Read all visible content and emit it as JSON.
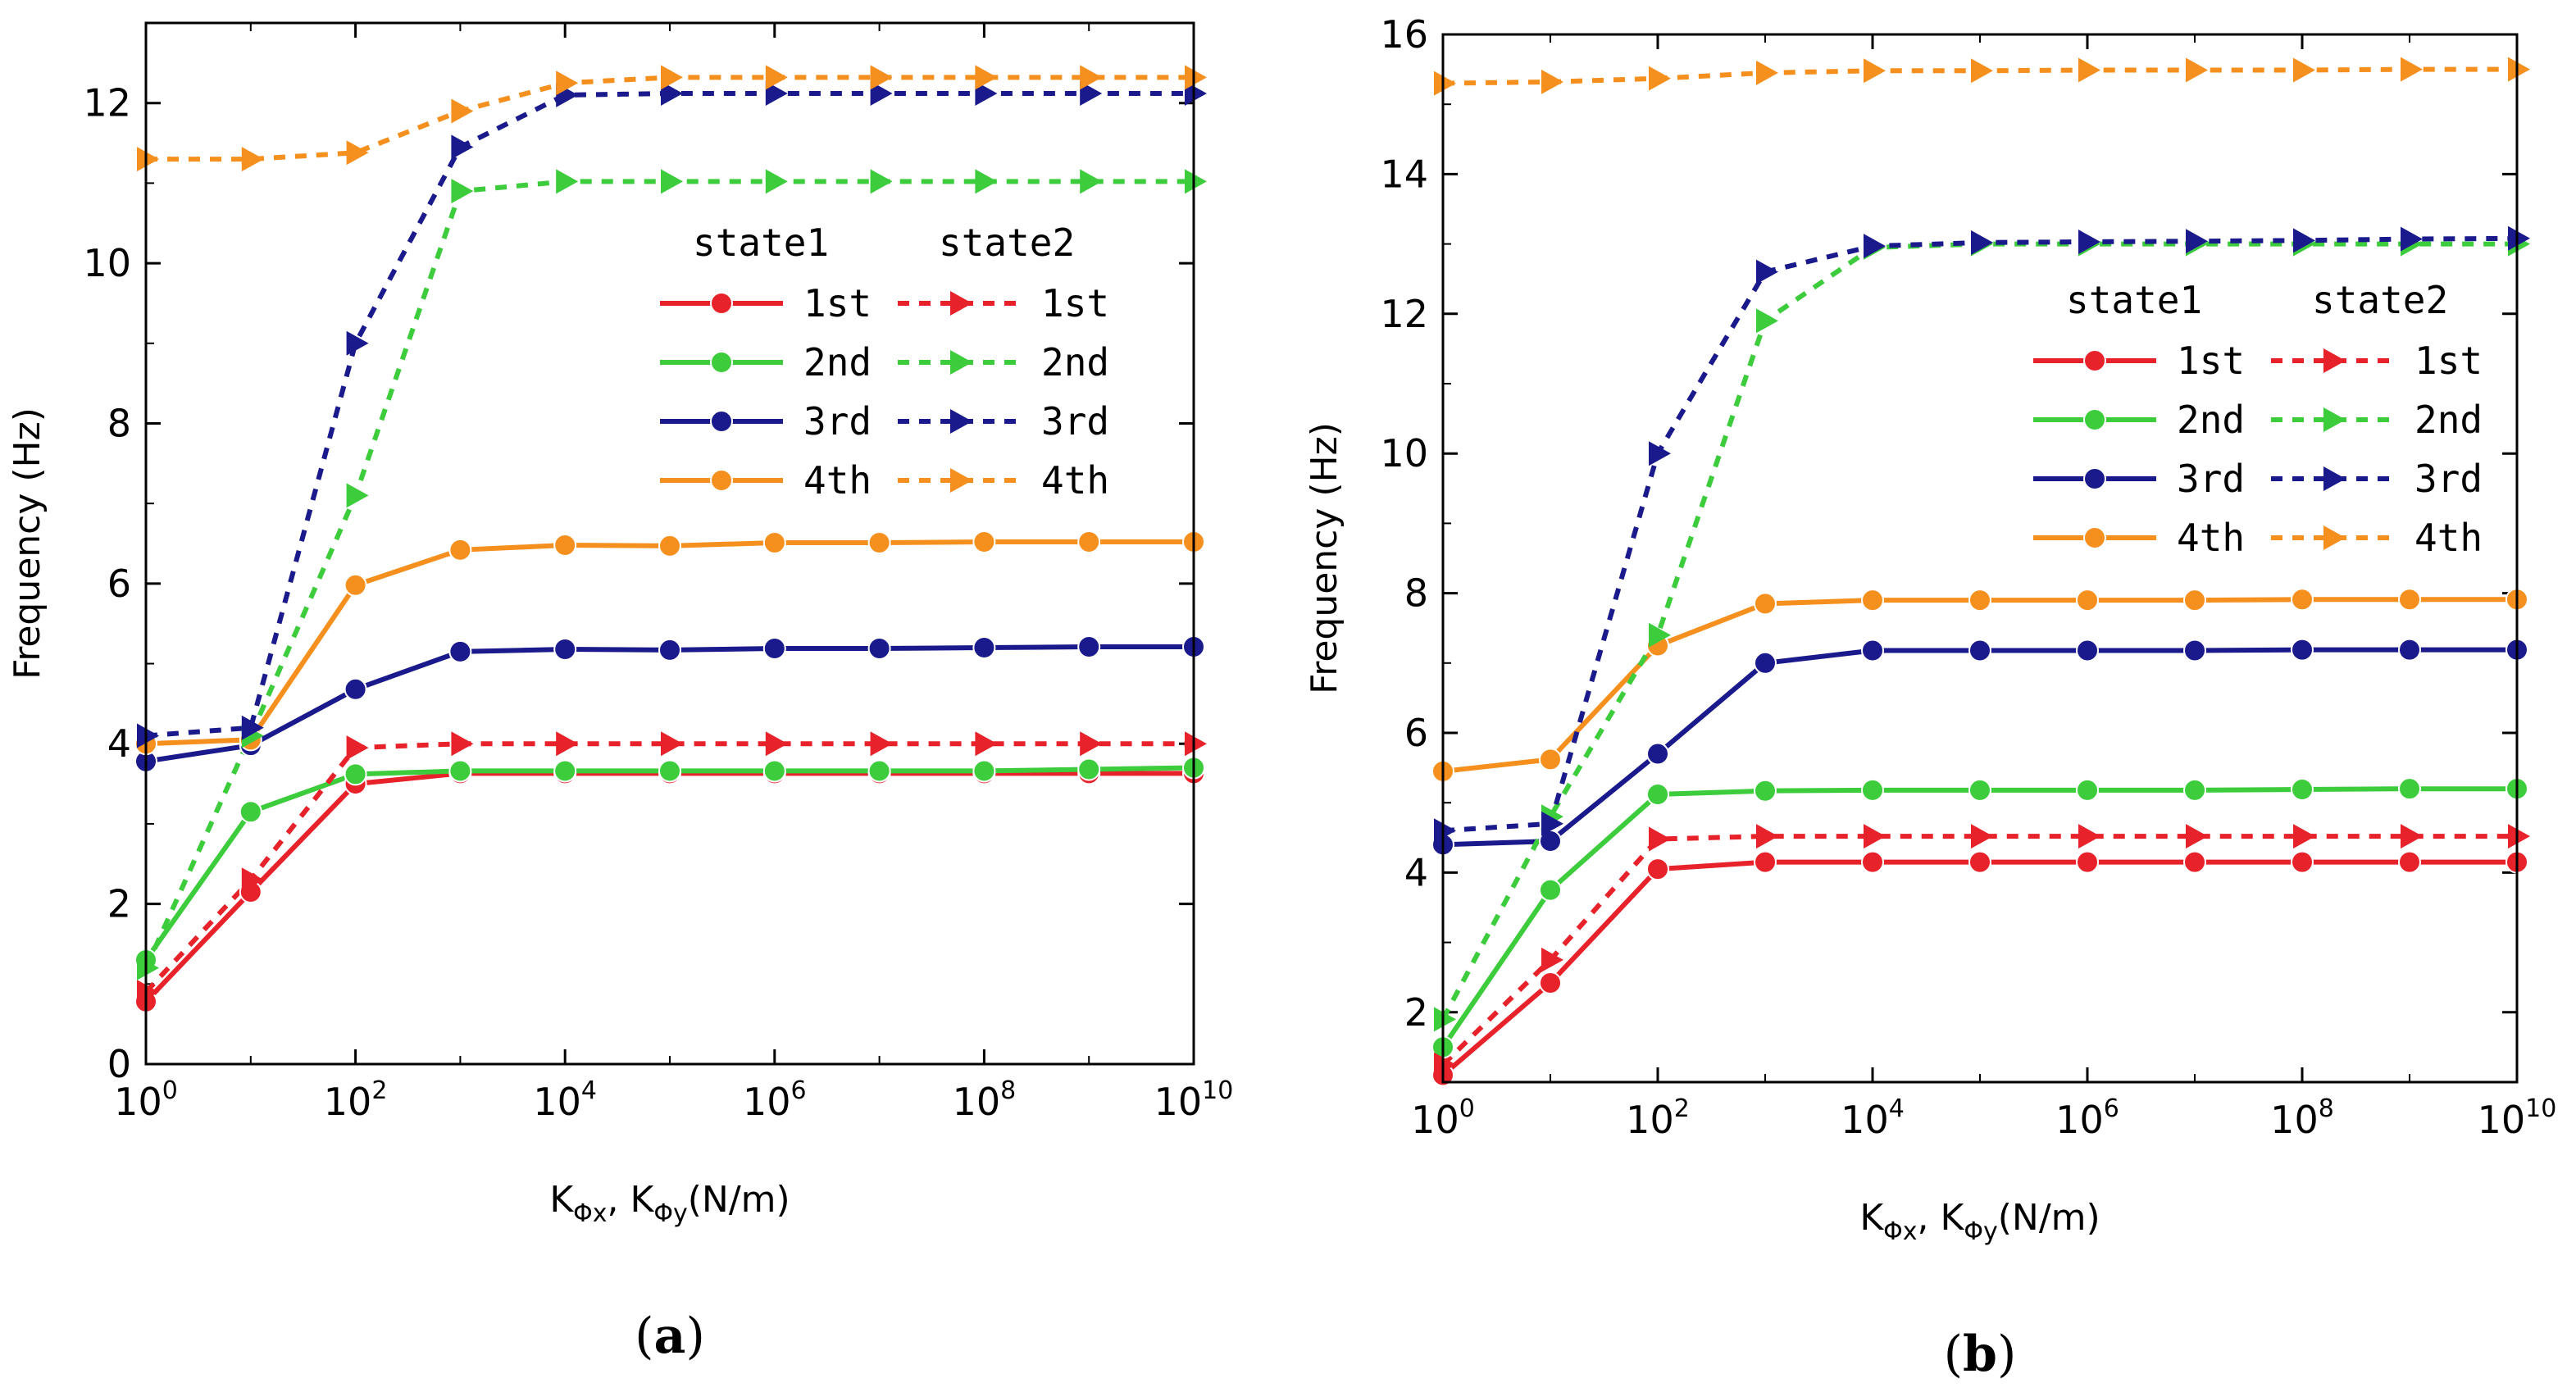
{
  "chart_data": [
    {
      "type": "line",
      "panel_label": {
        "open": "(",
        "letter": "a",
        "close": ")"
      },
      "ylabel": "Frequency (Hz)",
      "xlabel": {
        "k": "K",
        "sub1": "Φx",
        "sep": ", K",
        "sub2": "Φy",
        "unit": "(N/m)"
      },
      "xscale": "log",
      "xlim": [
        1,
        10000000000
      ],
      "ylim": [
        0,
        13
      ],
      "x_exponents": [
        0,
        1,
        2,
        3,
        4,
        5,
        6,
        7,
        8,
        9,
        10
      ],
      "x_tick_exponents": [
        "0",
        "2",
        "4",
        "6",
        "8",
        "10"
      ],
      "x_tick_base": "10",
      "y_ticks": [
        "0",
        "2",
        "4",
        "6",
        "8",
        "10",
        "12"
      ],
      "y_tick_values": [
        0,
        2,
        4,
        6,
        8,
        10,
        12
      ],
      "legend": {
        "position": "right",
        "header_state1": "state1",
        "header_state2": "state2",
        "rows": [
          "1st",
          "2nd",
          "3rd",
          "4th"
        ]
      },
      "series": [
        {
          "name": "state1 1st",
          "style": "solid",
          "marker": "circle",
          "color": "#e8222a",
          "values": [
            0.78,
            2.15,
            3.5,
            3.63,
            3.63,
            3.63,
            3.63,
            3.63,
            3.63,
            3.63,
            3.63
          ]
        },
        {
          "name": "state1 2nd",
          "style": "solid",
          "marker": "circle",
          "color": "#3ccc3c",
          "values": [
            1.3,
            3.15,
            3.62,
            3.66,
            3.66,
            3.66,
            3.66,
            3.66,
            3.66,
            3.68,
            3.7
          ]
        },
        {
          "name": "state1 3rd",
          "style": "solid",
          "marker": "circle",
          "color": "#1a1a8c",
          "values": [
            3.78,
            3.98,
            4.68,
            5.15,
            5.18,
            5.17,
            5.19,
            5.19,
            5.2,
            5.21,
            5.21
          ]
        },
        {
          "name": "state1 4th",
          "style": "solid",
          "marker": "circle",
          "color": "#f5901e",
          "values": [
            4.0,
            4.05,
            5.98,
            6.42,
            6.48,
            6.47,
            6.51,
            6.51,
            6.52,
            6.52,
            6.52
          ]
        },
        {
          "name": "state2 1st",
          "style": "dashed",
          "marker": "triangle-right",
          "color": "#e8222a",
          "values": [
            0.9,
            2.3,
            3.95,
            4.0,
            4.0,
            4.0,
            4.0,
            4.0,
            4.0,
            4.0,
            4.0
          ]
        },
        {
          "name": "state2 2nd",
          "style": "dashed",
          "marker": "triangle-right",
          "color": "#3ccc3c",
          "values": [
            1.2,
            4.1,
            7.1,
            10.9,
            11.02,
            11.02,
            11.02,
            11.02,
            11.02,
            11.02,
            11.02
          ]
        },
        {
          "name": "state2 3rd",
          "style": "dashed",
          "marker": "triangle-right",
          "color": "#1a1a8c",
          "values": [
            4.1,
            4.2,
            9.0,
            11.45,
            12.1,
            12.12,
            12.12,
            12.12,
            12.12,
            12.12,
            12.12
          ]
        },
        {
          "name": "state2 4th",
          "style": "dashed",
          "marker": "triangle-right",
          "color": "#f5901e",
          "values": [
            11.3,
            11.3,
            11.38,
            11.9,
            12.25,
            12.32,
            12.32,
            12.32,
            12.32,
            12.32,
            12.32
          ]
        }
      ]
    },
    {
      "type": "line",
      "panel_label": {
        "open": "(",
        "letter": "b",
        "close": ")"
      },
      "ylabel": "Frequency (Hz)",
      "xlabel": {
        "k": "K",
        "sub1": "Φx",
        "sep": ", K",
        "sub2": "Φy",
        "unit": "(N/m)"
      },
      "xscale": "log",
      "xlim": [
        1,
        10000000000
      ],
      "ylim": [
        1,
        16
      ],
      "x_exponents": [
        0,
        1,
        2,
        3,
        4,
        5,
        6,
        7,
        8,
        9,
        10
      ],
      "x_tick_exponents": [
        "0",
        "2",
        "4",
        "6",
        "8",
        "10"
      ],
      "x_tick_base": "10",
      "y_ticks": [
        "2",
        "4",
        "6",
        "8",
        "10",
        "12",
        "14",
        "16"
      ],
      "y_tick_values": [
        2,
        4,
        6,
        8,
        10,
        12,
        14,
        16
      ],
      "legend": {
        "position": "right",
        "header_state1": "state1",
        "header_state2": "state2",
        "rows": [
          "1st",
          "2nd",
          "3rd",
          "4th"
        ]
      },
      "series": [
        {
          "name": "state1 1st",
          "style": "solid",
          "marker": "circle",
          "color": "#e8222a",
          "values": [
            1.1,
            2.42,
            4.05,
            4.15,
            4.15,
            4.15,
            4.15,
            4.15,
            4.15,
            4.15,
            4.15
          ]
        },
        {
          "name": "state1 2nd",
          "style": "solid",
          "marker": "circle",
          "color": "#3ccc3c",
          "values": [
            1.5,
            3.75,
            5.12,
            5.17,
            5.18,
            5.18,
            5.18,
            5.18,
            5.19,
            5.2,
            5.2
          ]
        },
        {
          "name": "state1 3rd",
          "style": "solid",
          "marker": "circle",
          "color": "#1a1a8c",
          "values": [
            4.4,
            4.45,
            5.7,
            7.0,
            7.18,
            7.18,
            7.18,
            7.18,
            7.19,
            7.19,
            7.19
          ]
        },
        {
          "name": "state1 4th",
          "style": "solid",
          "marker": "circle",
          "color": "#f5901e",
          "values": [
            5.45,
            5.62,
            7.25,
            7.85,
            7.9,
            7.9,
            7.9,
            7.9,
            7.91,
            7.91,
            7.91
          ]
        },
        {
          "name": "state2 1st",
          "style": "dashed",
          "marker": "triangle-right",
          "color": "#e8222a",
          "values": [
            1.25,
            2.75,
            4.48,
            4.52,
            4.52,
            4.52,
            4.52,
            4.52,
            4.52,
            4.52,
            4.52
          ]
        },
        {
          "name": "state2 2nd",
          "style": "dashed",
          "marker": "triangle-right",
          "color": "#3ccc3c",
          "values": [
            1.9,
            4.8,
            7.4,
            11.9,
            12.95,
            13.0,
            13.0,
            13.0,
            13.0,
            13.0,
            13.0
          ]
        },
        {
          "name": "state2 3rd",
          "style": "dashed",
          "marker": "triangle-right",
          "color": "#1a1a8c",
          "values": [
            4.6,
            4.7,
            10.0,
            12.6,
            12.97,
            13.02,
            13.03,
            13.04,
            13.05,
            13.07,
            13.08
          ]
        },
        {
          "name": "state2 4th",
          "style": "dashed",
          "marker": "triangle-right",
          "color": "#f5901e",
          "values": [
            15.3,
            15.32,
            15.37,
            15.45,
            15.48,
            15.48,
            15.49,
            15.49,
            15.49,
            15.5,
            15.5
          ]
        }
      ]
    }
  ]
}
